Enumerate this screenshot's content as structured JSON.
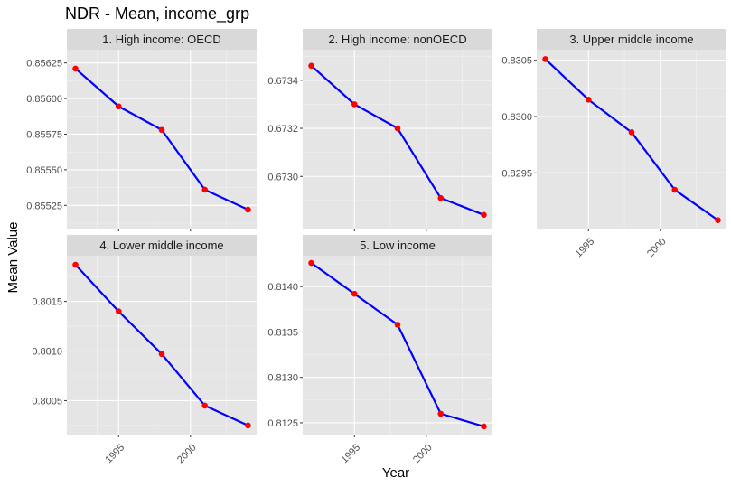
{
  "chart_data": {
    "type": "line",
    "title": "NDR - Mean, income_grp",
    "xlabel": "Year",
    "ylabel": "Mean Value",
    "line_color": "#0000ff",
    "point_color": "#ff0000",
    "panel_bg": "#e5e5e5",
    "strip_bg": "#d9d9d9",
    "grid": true,
    "x_ticks": [
      1995,
      2000
    ],
    "xlim": [
      1991.4,
      2004.6
    ],
    "x": [
      1992,
      1995,
      1998,
      2001,
      2004
    ],
    "panels": [
      {
        "label": "1. High income: OECD",
        "y": [
          0.85621,
          0.855945,
          0.85578,
          0.85536,
          0.85522
        ],
        "ylim": [
          0.855087,
          0.856343
        ],
        "y_ticks": [
          0.85525,
          0.8555,
          0.85575,
          0.856,
          0.85625
        ],
        "y_tick_labels": [
          "0.85525",
          "0.85550",
          "0.85575",
          "0.85600",
          "0.85625"
        ]
      },
      {
        "label": "2. High income: nonOECD",
        "y": [
          0.67346,
          0.6733,
          0.6732,
          0.67291,
          0.67284
        ],
        "ylim": [
          0.672783,
          0.673527
        ],
        "y_ticks": [
          0.673,
          0.6732,
          0.6734
        ],
        "y_tick_labels": [
          "0.6730",
          "0.6732",
          "0.6734"
        ]
      },
      {
        "label": "3. Upper middle income",
        "y": [
          0.83051,
          0.83015,
          0.82986,
          0.82935,
          0.82908
        ],
        "ylim": [
          0.829005,
          0.830594
        ],
        "y_ticks": [
          0.8295,
          0.83,
          0.8305
        ],
        "y_tick_labels": [
          "0.8295",
          "0.8300",
          "0.8305"
        ]
      },
      {
        "label": "4. Lower middle income",
        "y": [
          0.80187,
          0.8014,
          0.80097,
          0.80045,
          0.80025
        ],
        "ylim": [
          0.800158,
          0.801961
        ],
        "y_ticks": [
          0.8005,
          0.801,
          0.8015
        ],
        "y_tick_labels": [
          "0.8005",
          "0.8010",
          "0.8015"
        ]
      },
      {
        "label": "5. Low income",
        "y": [
          0.81426,
          0.81392,
          0.81358,
          0.8126,
          0.81246
        ],
        "ylim": [
          0.81237,
          0.81434
        ],
        "y_ticks": [
          0.8125,
          0.813,
          0.8135,
          0.814
        ],
        "y_tick_labels": [
          "0.8125",
          "0.8130",
          "0.8135",
          "0.8140"
        ]
      }
    ]
  }
}
